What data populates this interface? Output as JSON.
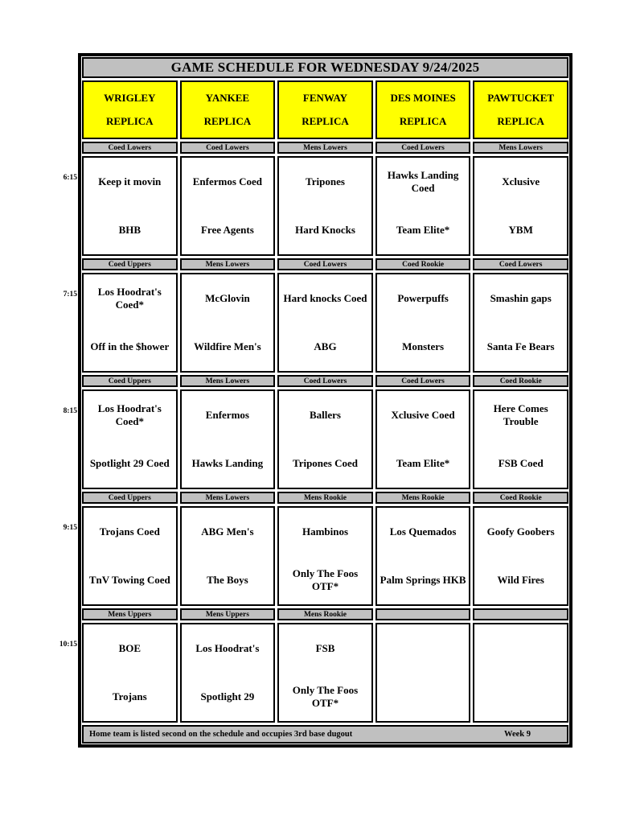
{
  "colors": {
    "strip_gray": "#c0c0c0",
    "venue_yellow": "#ffff00",
    "border_black": "#000000"
  },
  "schedule": {
    "title": "GAME SCHEDULE FOR WEDNESDAY 9/24/2025",
    "venues": [
      {
        "name": "WRIGLEY",
        "replica": "REPLICA"
      },
      {
        "name": "YANKEE",
        "replica": "REPLICA"
      },
      {
        "name": "FENWAY",
        "replica": "REPLICA"
      },
      {
        "name": "DES MOINES",
        "replica": "REPLICA"
      },
      {
        "name": "PAWTUCKET",
        "replica": "REPLICA"
      }
    ],
    "blocks": [
      {
        "time": "6:15",
        "slots": [
          {
            "category": "Coed Lowers",
            "away": "Keep it movin",
            "home": "BHB"
          },
          {
            "category": "Coed Lowers",
            "away": "Enfermos Coed",
            "home": "Free Agents"
          },
          {
            "category": "Mens Lowers",
            "away": "Tripones",
            "home": "Hard Knocks"
          },
          {
            "category": "Coed Lowers",
            "away": "Hawks Landing Coed",
            "home": "Team Elite*"
          },
          {
            "category": "Mens Lowers",
            "away": "Xclusive",
            "home": "YBM"
          }
        ]
      },
      {
        "time": "7:15",
        "slots": [
          {
            "category": "Coed Uppers",
            "away": "Los Hoodrat's Coed*",
            "home": "Off in the $hower"
          },
          {
            "category": "Mens Lowers",
            "away": "McGlovin",
            "home": "Wildfire Men's"
          },
          {
            "category": "Coed Lowers",
            "away": "Hard knocks Coed",
            "home": "ABG"
          },
          {
            "category": "Coed Rookie",
            "away": "Powerpuffs",
            "home": "Monsters"
          },
          {
            "category": "Coed Lowers",
            "away": "Smashin gaps",
            "home": "Santa Fe Bears"
          }
        ]
      },
      {
        "time": "8:15",
        "slots": [
          {
            "category": "Coed Uppers",
            "away": "Los Hoodrat's Coed*",
            "home": "Spotlight 29 Coed"
          },
          {
            "category": "Mens Lowers",
            "away": "Enfermos",
            "home": "Hawks Landing"
          },
          {
            "category": "Coed Lowers",
            "away": "Ballers",
            "home": "Tripones Coed"
          },
          {
            "category": "Coed Lowers",
            "away": "Xclusive Coed",
            "home": "Team Elite*"
          },
          {
            "category": "Coed Rookie",
            "away": "Here Comes Trouble",
            "home": "FSB Coed"
          }
        ]
      },
      {
        "time": "9:15",
        "slots": [
          {
            "category": "Coed Uppers",
            "away": "Trojans Coed",
            "home": "TnV Towing Coed"
          },
          {
            "category": "Mens Lowers",
            "away": "ABG Men's",
            "home": "The Boys"
          },
          {
            "category": "Mens Rookie",
            "away": "Hambinos",
            "home": "Only The Foos OTF*"
          },
          {
            "category": "Mens Rookie",
            "away": "Los Quemados",
            "home": "Palm Springs HKB"
          },
          {
            "category": "Coed Rookie",
            "away": "Goofy Goobers",
            "home": "Wild Fires"
          }
        ]
      },
      {
        "time": "10:15",
        "slots": [
          {
            "category": "Mens Uppers",
            "away": "BOE",
            "home": "Trojans"
          },
          {
            "category": "Mens Uppers",
            "away": "Los Hoodrat's",
            "home": "Spotlight 29"
          },
          {
            "category": "Mens Rookie",
            "away": "FSB",
            "home": "Only The Foos OTF*"
          },
          {
            "category": "",
            "away": "",
            "home": ""
          },
          {
            "category": "",
            "away": "",
            "home": ""
          }
        ]
      }
    ],
    "footer": {
      "note": "Home team is listed second on the schedule and occupies 3rd base dugout",
      "week": "Week 9"
    }
  }
}
